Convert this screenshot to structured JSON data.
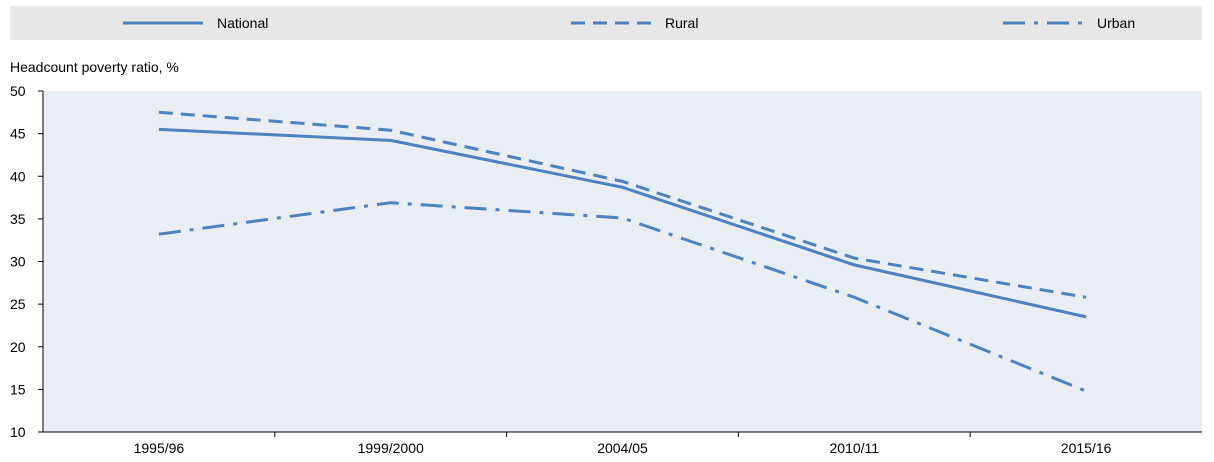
{
  "chart_data": {
    "type": "line",
    "ylabel": "Headcount poverty ratio, %",
    "categories": [
      "1995/96",
      "1999/2000",
      "2004/05",
      "2010/11",
      "2015/16"
    ],
    "ylim": [
      10,
      50
    ],
    "yticks": [
      10,
      15,
      20,
      25,
      30,
      35,
      40,
      45,
      50
    ],
    "grid": false,
    "legend_position": "top",
    "series": [
      {
        "name": "National",
        "dash": "solid",
        "color": "#4e81bd",
        "values": [
          45.5,
          44.2,
          38.7,
          29.6,
          23.5
        ]
      },
      {
        "name": "Rural",
        "dash": "dash",
        "color": "#4e81bd",
        "values": [
          47.5,
          45.4,
          39.4,
          30.4,
          25.8
        ]
      },
      {
        "name": "Urban",
        "dash": "dash-dot",
        "color": "#4e81bd",
        "values": [
          33.2,
          36.9,
          35.1,
          25.8,
          14.8
        ]
      }
    ],
    "colors": {
      "plot_background": "#e9eef5",
      "legend_background": "#e7e7e7",
      "line": "#4e81bd"
    }
  }
}
